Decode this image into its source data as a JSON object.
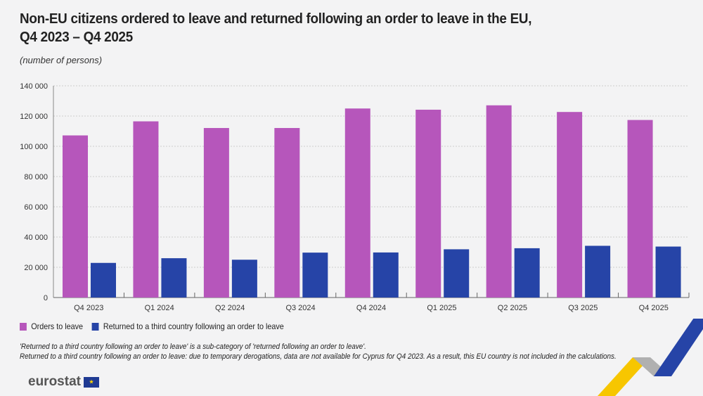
{
  "title_line1": "Non-EU citizens ordered to leave and returned following an order to leave in the EU,",
  "title_line2": "Q4 2023 – Q4 2025",
  "subtitle": "(number of persons)",
  "chart_data": {
    "type": "bar",
    "categories": [
      "Q4 2023",
      "Q1 2024",
      "Q2 2024",
      "Q3 2024",
      "Q4 2024",
      "Q1 2025",
      "Q2 2025",
      "Q3 2025",
      "Q4 2025"
    ],
    "series": [
      {
        "name": "Orders to leave",
        "color": "#b656bb",
        "values": [
          107200,
          116500,
          112100,
          112100,
          125000,
          124200,
          127100,
          122700,
          117400
        ]
      },
      {
        "name": "Returned to a third country following an order to leave",
        "color": "#2644a7",
        "values": [
          22900,
          26000,
          25000,
          29700,
          29800,
          31900,
          32600,
          34200,
          33700
        ]
      }
    ],
    "ylim": [
      0,
      140000
    ],
    "yticks": [
      "0",
      "20 000",
      "40 000",
      "60 000",
      "80 000",
      "100 000",
      "120 000",
      "140 000"
    ],
    "ytick_values": [
      0,
      20000,
      40000,
      60000,
      80000,
      100000,
      120000,
      140000
    ],
    "grid": true,
    "legend": "bottom-left"
  },
  "notes": [
    "'Returned to a third country following an order to leave' is a sub-category of 'returned following an order to leave'.",
    "Returned to a third country following an order to leave: due to temporary derogations, data are not available for Cyprus for Q4 2023. As a result, this EU country is not included in the calculations."
  ],
  "logo": "eurostat"
}
